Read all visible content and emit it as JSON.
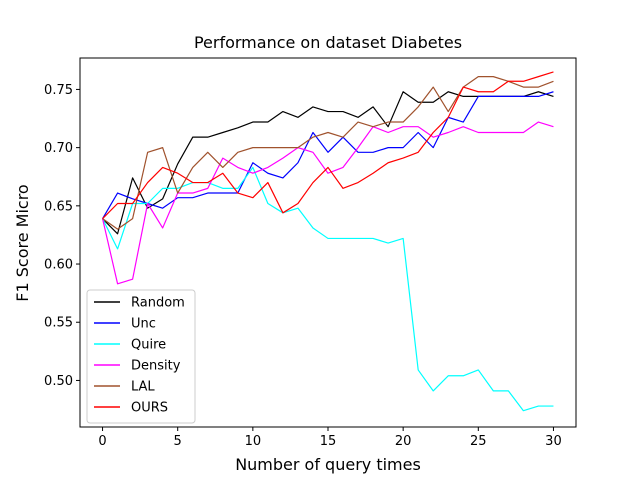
{
  "chart_data": {
    "type": "line",
    "title": "Performance on dataset Diabetes",
    "xlabel": "Number of query times",
    "ylabel": "F1 Score Micro",
    "xlim": [
      -1.5,
      31.5
    ],
    "ylim": [
      0.46,
      0.777
    ],
    "xticks": [
      0,
      5,
      10,
      15,
      20,
      25,
      30
    ],
    "xtick_labels": [
      "0",
      "5",
      "10",
      "15",
      "20",
      "25",
      "30"
    ],
    "yticks": [
      0.5,
      0.55,
      0.6,
      0.65,
      0.7,
      0.75
    ],
    "ytick_labels": [
      "0.50",
      "0.55",
      "0.60",
      "0.65",
      "0.70",
      "0.75"
    ],
    "grid": false,
    "legend_position": "lower-left",
    "x": [
      0,
      1,
      2,
      3,
      4,
      5,
      6,
      7,
      8,
      9,
      10,
      11,
      12,
      13,
      14,
      15,
      16,
      17,
      18,
      19,
      20,
      21,
      22,
      23,
      24,
      25,
      26,
      27,
      28,
      29,
      30
    ],
    "series": [
      {
        "name": "Random",
        "color": "#000000",
        "values": [
          0.639,
          0.626,
          0.674,
          0.648,
          0.656,
          0.686,
          0.709,
          0.709,
          0.713,
          0.717,
          0.722,
          0.722,
          0.731,
          0.726,
          0.735,
          0.731,
          0.731,
          0.726,
          0.735,
          0.718,
          0.748,
          0.739,
          0.739,
          0.748,
          0.744,
          0.744,
          0.744,
          0.744,
          0.744,
          0.748,
          0.744
        ]
      },
      {
        "name": "Unc",
        "color": "#0000ff",
        "values": [
          0.639,
          0.661,
          0.656,
          0.652,
          0.648,
          0.657,
          0.657,
          0.661,
          0.661,
          0.661,
          0.687,
          0.678,
          0.674,
          0.687,
          0.713,
          0.696,
          0.709,
          0.696,
          0.696,
          0.7,
          0.7,
          0.713,
          0.7,
          0.726,
          0.722,
          0.744,
          0.744,
          0.744,
          0.744,
          0.744,
          0.748
        ]
      },
      {
        "name": "Quire",
        "color": "#00ffff",
        "values": [
          0.639,
          0.613,
          0.652,
          0.652,
          0.665,
          0.665,
          0.67,
          0.67,
          0.665,
          0.665,
          0.683,
          0.652,
          0.644,
          0.648,
          0.631,
          0.622,
          0.622,
          0.622,
          0.622,
          0.618,
          0.622,
          0.509,
          0.491,
          0.504,
          0.504,
          0.509,
          0.491,
          0.491,
          0.474,
          0.478,
          0.478
        ]
      },
      {
        "name": "Density",
        "color": "#ff00ff",
        "values": [
          0.639,
          0.583,
          0.587,
          0.652,
          0.631,
          0.661,
          0.661,
          0.665,
          0.691,
          0.683,
          0.678,
          0.683,
          0.691,
          0.7,
          0.696,
          0.678,
          0.683,
          0.7,
          0.718,
          0.713,
          0.718,
          0.718,
          0.709,
          0.713,
          0.718,
          0.713,
          0.713,
          0.713,
          0.713,
          0.722,
          0.718
        ]
      },
      {
        "name": "LAL",
        "color": "#a0522d",
        "values": [
          0.639,
          0.63,
          0.639,
          0.696,
          0.7,
          0.661,
          0.683,
          0.696,
          0.683,
          0.696,
          0.7,
          0.7,
          0.7,
          0.7,
          0.709,
          0.713,
          0.709,
          0.722,
          0.718,
          0.722,
          0.722,
          0.735,
          0.752,
          0.731,
          0.752,
          0.761,
          0.761,
          0.757,
          0.752,
          0.752,
          0.757
        ]
      },
      {
        "name": "OURS",
        "color": "#ff0000",
        "values": [
          0.639,
          0.652,
          0.652,
          0.67,
          0.683,
          0.678,
          0.67,
          0.67,
          0.678,
          0.661,
          0.657,
          0.67,
          0.644,
          0.652,
          0.67,
          0.683,
          0.665,
          0.67,
          0.678,
          0.687,
          0.691,
          0.696,
          0.713,
          0.726,
          0.752,
          0.748,
          0.748,
          0.757,
          0.757,
          0.761,
          0.765
        ]
      }
    ]
  }
}
